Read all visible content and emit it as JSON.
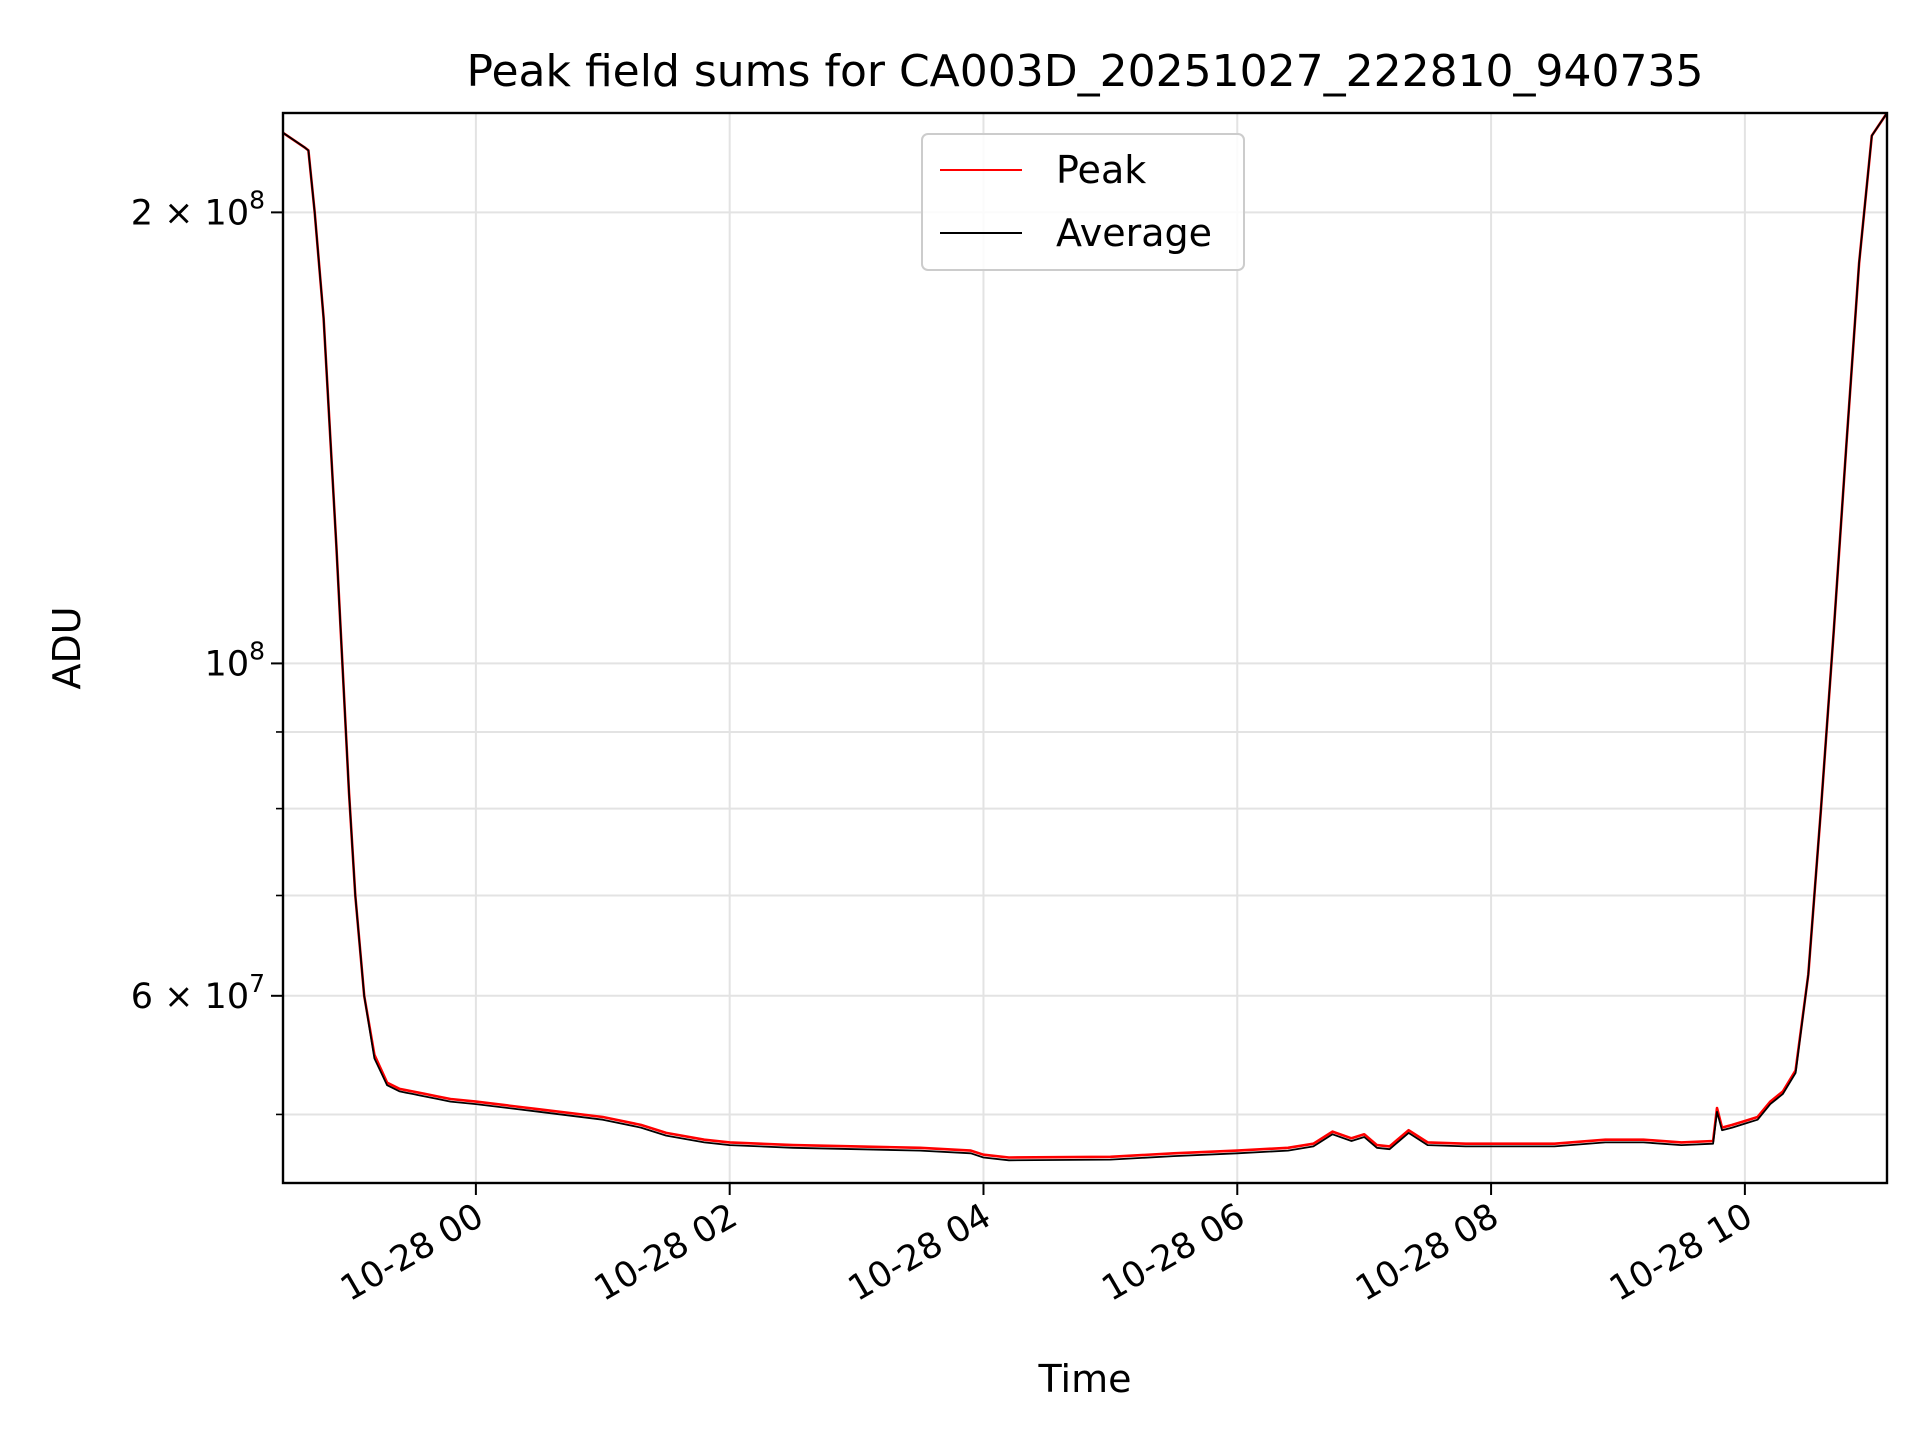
{
  "chart_data": {
    "type": "line",
    "title": "Peak field sums for CA003D_20251027_222810_940735",
    "xlabel": "Time",
    "ylabel": "ADU",
    "yscale": "log",
    "ylim": [
      45000000,
      233000000
    ],
    "xlim_hours": [
      -1.52,
      11.12
    ],
    "x_unit": "hours since 2025-10-28 00:00",
    "grid": true,
    "legend_position": "upper center",
    "x_ticks": [
      {
        "value": 0,
        "label": "10-28 00"
      },
      {
        "value": 2,
        "label": "10-28 02"
      },
      {
        "value": 4,
        "label": "10-28 04"
      },
      {
        "value": 6,
        "label": "10-28 06"
      },
      {
        "value": 8,
        "label": "10-28 08"
      },
      {
        "value": 10,
        "label": "10-28 10"
      }
    ],
    "y_major_ticks": [
      {
        "value": 60000000,
        "base": "6 × 10",
        "exp": "7"
      },
      {
        "value": 100000000,
        "base": "10",
        "exp": "8"
      },
      {
        "value": 200000000,
        "base": "2 × 10",
        "exp": "8"
      }
    ],
    "y_minor_ticks": [
      50000000,
      70000000,
      80000000,
      90000000
    ],
    "series": [
      {
        "name": "Peak",
        "color": "#ff0000",
        "x": [
          -1.52,
          -1.35,
          -1.32,
          -1.27,
          -1.2,
          -1.1,
          -1.0,
          -0.95,
          -0.88,
          -0.8,
          -0.7,
          -0.6,
          -0.55,
          -0.5,
          -0.45,
          -0.4,
          -0.3,
          -0.2,
          0,
          0.5,
          1.0,
          1.3,
          1.5,
          1.8,
          2.0,
          2.5,
          3.0,
          3.5,
          3.9,
          4.0,
          4.2,
          5.0,
          5.5,
          6.0,
          6.4,
          6.6,
          6.75,
          6.9,
          7.0,
          7.1,
          7.2,
          7.35,
          7.5,
          7.8,
          8.0,
          8.5,
          8.9,
          9.2,
          9.5,
          9.75,
          9.78,
          9.82,
          9.9,
          10.0,
          10.1,
          10.2,
          10.25,
          10.3,
          10.4,
          10.5,
          10.6,
          10.7,
          10.8,
          10.9,
          11.0,
          11.12
        ],
        "y": [
          226000000,
          221000000,
          220000000,
          200000000,
          170000000,
          120000000,
          82000000,
          70000000,
          60000000,
          54800000,
          52500000,
          52000000,
          51900000,
          51800000,
          51700000,
          51600000,
          51400000,
          51200000,
          51000000,
          50400000,
          49800000,
          49200000,
          48600000,
          48100000,
          47900000,
          47700000,
          47600000,
          47500000,
          47300000,
          47000000,
          46800000,
          46850000,
          47100000,
          47300000,
          47500000,
          47800000,
          48700000,
          48200000,
          48500000,
          47700000,
          47600000,
          48800000,
          47900000,
          47800000,
          47800000,
          47800000,
          48100000,
          48100000,
          47900000,
          48000000,
          50500000,
          49000000,
          49200000,
          49500000,
          49800000,
          51000000,
          51400000,
          51800000,
          53500000,
          62000000,
          80000000,
          105000000,
          140000000,
          185000000,
          225000000,
          233000000
        ]
      },
      {
        "name": "Average",
        "color": "#000000",
        "x": [
          -1.52,
          -1.35,
          -1.32,
          -1.27,
          -1.2,
          -1.1,
          -1.0,
          -0.95,
          -0.88,
          -0.8,
          -0.7,
          -0.6,
          -0.55,
          -0.5,
          -0.45,
          -0.4,
          -0.3,
          -0.2,
          0,
          0.5,
          1.0,
          1.3,
          1.5,
          1.8,
          2.0,
          2.5,
          3.0,
          3.5,
          3.9,
          4.0,
          4.2,
          5.0,
          5.5,
          6.0,
          6.4,
          6.6,
          6.75,
          6.9,
          7.0,
          7.1,
          7.2,
          7.35,
          7.5,
          7.8,
          8.0,
          8.5,
          8.9,
          9.2,
          9.5,
          9.75,
          9.78,
          9.82,
          9.9,
          10.0,
          10.1,
          10.2,
          10.25,
          10.3,
          10.4,
          10.5,
          10.6,
          10.7,
          10.8,
          10.9,
          11.0,
          11.12
        ],
        "y": [
          226000000,
          221000000,
          220000000,
          200000000,
          170000000,
          120000000,
          82000000,
          70000000,
          60000000,
          54500000,
          52300000,
          51800000,
          51700000,
          51600000,
          51500000,
          51400000,
          51200000,
          51000000,
          50800000,
          50200000,
          49600000,
          49000000,
          48400000,
          47900000,
          47700000,
          47500000,
          47400000,
          47300000,
          47100000,
          46800000,
          46600000,
          46650000,
          46900000,
          47100000,
          47300000,
          47600000,
          48500000,
          48000000,
          48300000,
          47500000,
          47400000,
          48600000,
          47700000,
          47600000,
          47600000,
          47600000,
          47900000,
          47900000,
          47700000,
          47800000,
          50200000,
          48800000,
          49000000,
          49300000,
          49600000,
          50800000,
          51200000,
          51600000,
          53300000,
          62000000,
          80000000,
          105000000,
          140000000,
          185000000,
          225000000,
          233000000
        ]
      }
    ]
  }
}
